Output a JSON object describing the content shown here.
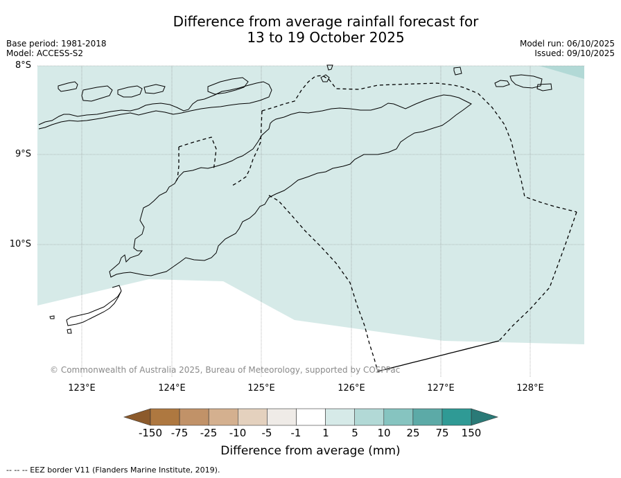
{
  "title": {
    "line1": "Difference from average rainfall forecast for",
    "line2": "13 to 19 October 2025"
  },
  "meta": {
    "base_period": "Base period: 1981-2018",
    "model": "Model: ACCESS-S2",
    "model_run": "Model run: 06/10/2025",
    "issued": "Issued: 09/10/2025"
  },
  "map": {
    "lat_labels": [
      "8°S",
      "9°S",
      "10°S"
    ],
    "lon_labels": [
      "123°E",
      "124°E",
      "125°E",
      "126°E",
      "127°E",
      "128°E"
    ],
    "copyright": "© Commonwealth of Australia 2025, Bureau of Meteorology, supported by COSPPac",
    "fill_color": "#d6eae8",
    "fill_color_high": "#b2d9d6"
  },
  "colorbar": {
    "label": "Difference from average (mm)",
    "ticks": [
      "-150",
      "-75",
      "-25",
      "-10",
      "-5",
      "-1",
      "1",
      "5",
      "10",
      "25",
      "75",
      "150"
    ],
    "colors": [
      "#8c5a2b",
      "#ae7840",
      "#c19268",
      "#d4b08f",
      "#e4d1be",
      "#efebe7",
      "#ffffff",
      "#d6eae8",
      "#b2d9d6",
      "#86c4c0",
      "#5caaa7",
      "#2f9a95",
      "#2a7a77"
    ]
  },
  "footer": {
    "eez_note": "--  --  -- EEZ border V11 (Flanders Marine Institute, 2019)."
  }
}
